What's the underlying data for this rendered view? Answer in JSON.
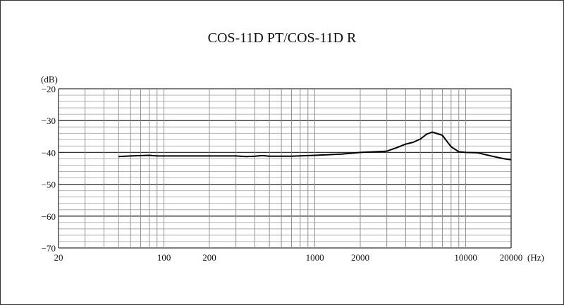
{
  "title": "COS-11D PT/COS-11D R",
  "y_unit": "(dB)",
  "x_unit": "(Hz)",
  "chart_data": {
    "type": "line",
    "title": "COS-11D PT/COS-11D R",
    "xlabel": "(Hz)",
    "ylabel": "(dB)",
    "xscale": "log",
    "xlim": [
      20,
      20000
    ],
    "ylim": [
      -70,
      -20
    ],
    "grid": true,
    "x_tick_labels": [
      "20",
      "100",
      "200",
      "1000",
      "2000",
      "10000",
      "20000"
    ],
    "y_tick_labels": [
      "-20",
      "-30",
      "-40",
      "-50",
      "-60",
      "-70"
    ],
    "series": [
      {
        "name": "COS-11D PT/COS-11D R",
        "x": [
          50,
          60,
          80,
          90,
          100,
          200,
          300,
          350,
          400,
          450,
          500,
          700,
          900,
          1000,
          1500,
          2000,
          2500,
          3000,
          3500,
          4000,
          4500,
          5000,
          5500,
          6000,
          7000,
          8000,
          9000,
          10000,
          12000,
          15000,
          18000,
          20000
        ],
        "y": [
          -41.3,
          -41.1,
          -40.9,
          -41.1,
          -41.1,
          -41.1,
          -41.1,
          -41.3,
          -41.2,
          -41.0,
          -41.2,
          -41.2,
          -41.0,
          -40.9,
          -40.5,
          -40.0,
          -39.8,
          -39.6,
          -38.5,
          -37.4,
          -36.8,
          -35.8,
          -34.3,
          -33.6,
          -34.6,
          -38.2,
          -39.8,
          -40.0,
          -40.1,
          -41.2,
          -42.0,
          -42.3
        ]
      }
    ]
  }
}
